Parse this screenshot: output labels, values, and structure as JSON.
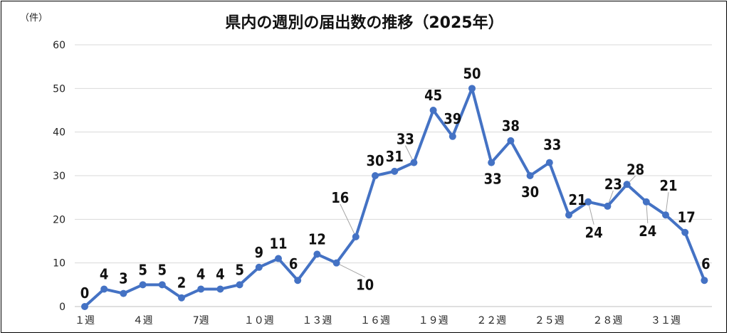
{
  "chart_data": {
    "type": "line",
    "title": "県内の週別の届出数の推移（2025年）",
    "unit_label": "（件）",
    "ylim": [
      0,
      60
    ],
    "yticks": [
      0,
      10,
      20,
      30,
      40,
      50,
      60
    ],
    "grid": true,
    "legend": "none",
    "x_tick_labels": [
      "１週",
      "４週",
      "7週",
      "１０週",
      "１３週",
      "１６週",
      "１９週",
      "２２週",
      "２５週",
      "２８週",
      "３１週"
    ],
    "x_tick_weeks": [
      1,
      4,
      7,
      10,
      13,
      16,
      19,
      22,
      25,
      28,
      31
    ],
    "series": [
      {
        "color": "#4472c4",
        "weeks": [
          1,
          2,
          3,
          4,
          5,
          6,
          7,
          8,
          9,
          10,
          11,
          12,
          13,
          14,
          15,
          16,
          17,
          18,
          19,
          20,
          21,
          22,
          23,
          24,
          25,
          26,
          27,
          28,
          29,
          30,
          31,
          32,
          33
        ],
        "values": [
          0,
          4,
          3,
          5,
          5,
          2,
          4,
          4,
          5,
          9,
          11,
          6,
          12,
          10,
          16,
          30,
          31,
          33,
          45,
          39,
          50,
          33,
          38,
          30,
          33,
          21,
          24,
          23,
          28,
          24,
          21,
          17,
          6
        ]
      }
    ]
  }
}
